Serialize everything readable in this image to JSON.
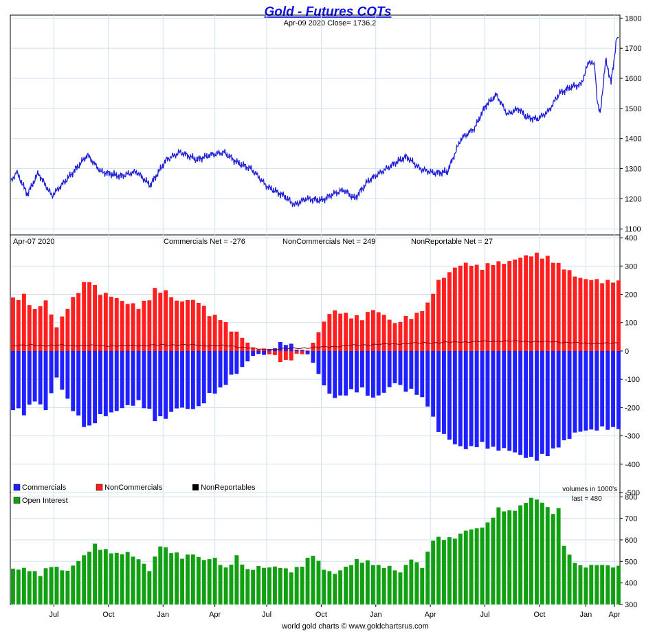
{
  "chart_data": {
    "type": "multi-panel",
    "title": "Gold - Futures COTs",
    "footer": "world gold charts © www.goldchartsrus.com",
    "x_ticks": [
      "Jul",
      "Oct",
      "Jan",
      "Apr",
      "Jul",
      "Oct",
      "Jan",
      "Apr",
      "Jul",
      "Oct",
      "Jan",
      "Apr"
    ],
    "colors": {
      "price": "#1f1fd6",
      "commercials": "#1f1fff",
      "noncommercials": "#ff1f1f",
      "nonreportables": "#8b0000",
      "open_interest": "#11a011",
      "title": "#1010e0",
      "grid": "#cfe0f2"
    },
    "panels": {
      "price": {
        "type": "line",
        "subtitle": "Apr-09  2020   Close= 1736.2",
        "ylim": [
          1080,
          1810
        ],
        "yticks": [
          1100,
          1200,
          1300,
          1400,
          1500,
          1600,
          1700,
          1800
        ],
        "keypoints": [
          [
            0,
            1255
          ],
          [
            2,
            1290
          ],
          [
            6,
            1215
          ],
          [
            10,
            1285
          ],
          [
            15,
            1210
          ],
          [
            22,
            1280
          ],
          [
            28,
            1345
          ],
          [
            33,
            1290
          ],
          [
            40,
            1275
          ],
          [
            46,
            1290
          ],
          [
            51,
            1245
          ],
          [
            57,
            1330
          ],
          [
            62,
            1355
          ],
          [
            68,
            1330
          ],
          [
            73,
            1345
          ],
          [
            78,
            1355
          ],
          [
            83,
            1320
          ],
          [
            88,
            1300
          ],
          [
            94,
            1240
          ],
          [
            100,
            1210
          ],
          [
            104,
            1180
          ],
          [
            108,
            1200
          ],
          [
            114,
            1195
          ],
          [
            118,
            1215
          ],
          [
            122,
            1230
          ],
          [
            126,
            1200
          ],
          [
            131,
            1260
          ],
          [
            136,
            1290
          ],
          [
            141,
            1320
          ],
          [
            145,
            1340
          ],
          [
            150,
            1300
          ],
          [
            155,
            1285
          ],
          [
            160,
            1290
          ],
          [
            165,
            1400
          ],
          [
            170,
            1435
          ],
          [
            174,
            1510
          ],
          [
            178,
            1545
          ],
          [
            182,
            1480
          ],
          [
            186,
            1500
          ],
          [
            189,
            1470
          ],
          [
            193,
            1465
          ],
          [
            197,
            1490
          ],
          [
            201,
            1550
          ],
          [
            205,
            1570
          ],
          [
            209,
            1580
          ],
          [
            212,
            1660
          ],
          [
            214,
            1640
          ],
          [
            215,
            1520
          ],
          [
            216,
            1480
          ],
          [
            218,
            1660
          ],
          [
            220,
            1590
          ],
          [
            221,
            1650
          ],
          [
            222,
            1736.2
          ]
        ]
      },
      "cot": {
        "type": "bar",
        "date": "Apr-07  2020",
        "summary": "Commercials Net = -276",
        "summary2": "NonCommercials Net = 249",
        "summary3": "NonReportable Net = 27",
        "ylim": [
          -500,
          410
        ],
        "yticks": [
          400,
          300,
          200,
          100,
          0,
          -100,
          -200,
          -300,
          -400,
          -500
        ],
        "noncommercials_keypoints": [
          [
            0,
            180
          ],
          [
            4,
            200
          ],
          [
            8,
            140
          ],
          [
            12,
            175
          ],
          [
            16,
            90
          ],
          [
            20,
            150
          ],
          [
            26,
            240
          ],
          [
            28,
            255
          ],
          [
            32,
            200
          ],
          [
            38,
            190
          ],
          [
            42,
            170
          ],
          [
            46,
            150
          ],
          [
            50,
            190
          ],
          [
            52,
            220
          ],
          [
            56,
            205
          ],
          [
            60,
            175
          ],
          [
            64,
            185
          ],
          [
            68,
            170
          ],
          [
            72,
            130
          ],
          [
            76,
            120
          ],
          [
            80,
            70
          ],
          [
            84,
            50
          ],
          [
            88,
            15
          ],
          [
            92,
            0
          ],
          [
            96,
            -20
          ],
          [
            100,
            -35
          ],
          [
            104,
            -20
          ],
          [
            108,
            0
          ],
          [
            112,
            70
          ],
          [
            116,
            130
          ],
          [
            120,
            140
          ],
          [
            124,
            125
          ],
          [
            128,
            110
          ],
          [
            132,
            150
          ],
          [
            136,
            130
          ],
          [
            140,
            90
          ],
          [
            144,
            120
          ],
          [
            148,
            130
          ],
          [
            152,
            160
          ],
          [
            156,
            250
          ],
          [
            160,
            280
          ],
          [
            164,
            300
          ],
          [
            168,
            310
          ],
          [
            172,
            295
          ],
          [
            176,
            305
          ],
          [
            180,
            315
          ],
          [
            184,
            325
          ],
          [
            188,
            330
          ],
          [
            192,
            345
          ],
          [
            196,
            330
          ],
          [
            200,
            300
          ],
          [
            204,
            285
          ],
          [
            206,
            270
          ],
          [
            208,
            258
          ],
          [
            210,
            249
          ]
        ],
        "commercials_keypoints": [
          [
            0,
            -200
          ],
          [
            4,
            -225
          ],
          [
            8,
            -170
          ],
          [
            12,
            -205
          ],
          [
            16,
            -100
          ],
          [
            20,
            -170
          ],
          [
            26,
            -265
          ],
          [
            28,
            -275
          ],
          [
            32,
            -225
          ],
          [
            38,
            -215
          ],
          [
            42,
            -195
          ],
          [
            46,
            -175
          ],
          [
            50,
            -215
          ],
          [
            52,
            -245
          ],
          [
            56,
            -230
          ],
          [
            60,
            -200
          ],
          [
            64,
            -210
          ],
          [
            68,
            -195
          ],
          [
            72,
            -155
          ],
          [
            76,
            -140
          ],
          [
            80,
            -85
          ],
          [
            84,
            -60
          ],
          [
            88,
            -20
          ],
          [
            92,
            -5
          ],
          [
            96,
            15
          ],
          [
            100,
            25
          ],
          [
            104,
            15
          ],
          [
            108,
            -10
          ],
          [
            112,
            -85
          ],
          [
            116,
            -150
          ],
          [
            120,
            -165
          ],
          [
            124,
            -145
          ],
          [
            128,
            -130
          ],
          [
            132,
            -170
          ],
          [
            136,
            -150
          ],
          [
            140,
            -105
          ],
          [
            144,
            -140
          ],
          [
            148,
            -150
          ],
          [
            152,
            -185
          ],
          [
            156,
            -285
          ],
          [
            160,
            -315
          ],
          [
            164,
            -335
          ],
          [
            168,
            -345
          ],
          [
            172,
            -330
          ],
          [
            176,
            -340
          ],
          [
            180,
            -350
          ],
          [
            184,
            -360
          ],
          [
            188,
            -370
          ],
          [
            192,
            -385
          ],
          [
            196,
            -365
          ],
          [
            200,
            -330
          ],
          [
            204,
            -310
          ],
          [
            206,
            -295
          ],
          [
            208,
            -285
          ],
          [
            210,
            -276
          ]
        ],
        "nonreportables_keypoints": [
          [
            0,
            20
          ],
          [
            20,
            20
          ],
          [
            40,
            18
          ],
          [
            60,
            22
          ],
          [
            80,
            18
          ],
          [
            92,
            5
          ],
          [
            100,
            8
          ],
          [
            110,
            12
          ],
          [
            130,
            22
          ],
          [
            150,
            28
          ],
          [
            165,
            32
          ],
          [
            180,
            35
          ],
          [
            200,
            32
          ],
          [
            210,
            27
          ]
        ]
      },
      "open_interest": {
        "type": "bar",
        "label": "Open Interest",
        "volumes_note": "volumes in 1000's",
        "last_label": "last = 480",
        "ylim": [
          300,
          820
        ],
        "yticks": [
          800,
          700,
          600,
          500,
          400,
          300
        ],
        "keypoints": [
          [
            0,
            460
          ],
          [
            6,
            465
          ],
          [
            10,
            440
          ],
          [
            14,
            475
          ],
          [
            20,
            460
          ],
          [
            26,
            520
          ],
          [
            30,
            580
          ],
          [
            34,
            550
          ],
          [
            38,
            530
          ],
          [
            42,
            545
          ],
          [
            46,
            510
          ],
          [
            50,
            455
          ],
          [
            54,
            580
          ],
          [
            58,
            545
          ],
          [
            62,
            515
          ],
          [
            66,
            540
          ],
          [
            70,
            505
          ],
          [
            74,
            510
          ],
          [
            78,
            470
          ],
          [
            82,
            520
          ],
          [
            86,
            455
          ],
          [
            90,
            480
          ],
          [
            94,
            470
          ],
          [
            98,
            470
          ],
          [
            102,
            460
          ],
          [
            106,
            480
          ],
          [
            110,
            530
          ],
          [
            114,
            470
          ],
          [
            118,
            440
          ],
          [
            122,
            470
          ],
          [
            126,
            510
          ],
          [
            130,
            495
          ],
          [
            134,
            475
          ],
          [
            138,
            480
          ],
          [
            142,
            445
          ],
          [
            146,
            510
          ],
          [
            150,
            480
          ],
          [
            154,
            600
          ],
          [
            158,
            605
          ],
          [
            162,
            615
          ],
          [
            166,
            640
          ],
          [
            170,
            650
          ],
          [
            174,
            680
          ],
          [
            178,
            740
          ],
          [
            182,
            730
          ],
          [
            186,
            760
          ],
          [
            190,
            790
          ],
          [
            194,
            775
          ],
          [
            198,
            730
          ],
          [
            200,
            740
          ],
          [
            202,
            575
          ],
          [
            204,
            520
          ],
          [
            206,
            500
          ],
          [
            208,
            480
          ]
        ]
      }
    },
    "legend": {
      "commercials": "Commercials",
      "noncommercials": "NonCommercials",
      "nonreportables": "NonReportables"
    }
  }
}
